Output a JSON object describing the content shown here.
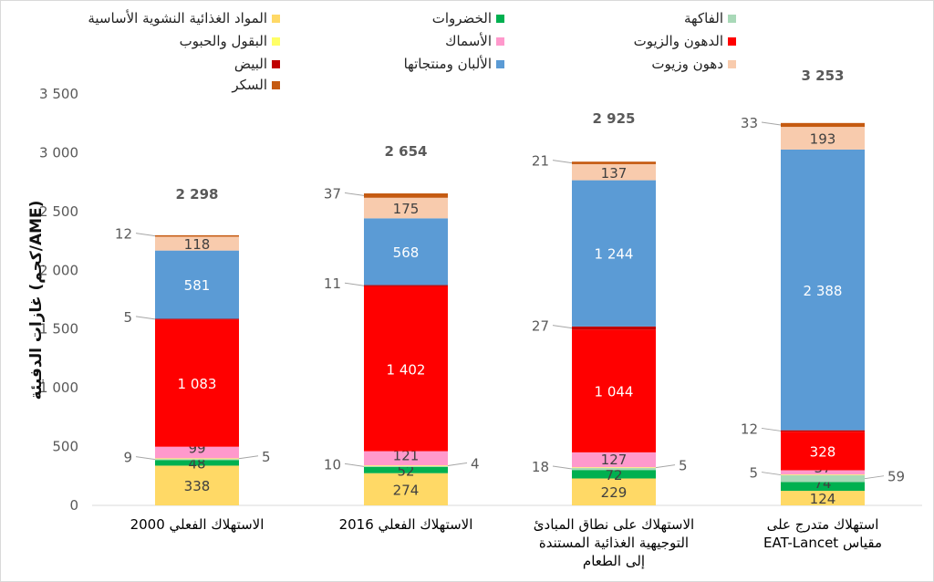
{
  "chart_data": {
    "type": "bar",
    "stacked": true,
    "ylabel": "غازات الدفيئة (كجم/AME)",
    "ylim": [
      0,
      3500
    ],
    "yticks": [
      0,
      500,
      1000,
      1500,
      2000,
      2500,
      3000,
      3500
    ],
    "ytick_labels": [
      "0",
      "500",
      "1 000",
      "1 500",
      "2 000",
      "2 500",
      "3 000",
      "3 500"
    ],
    "categories": [
      [
        "الاستهلاك الفعلي 2000"
      ],
      [
        "الاستهلاك الفعلي 2016"
      ],
      [
        "الاستهلاك على نطاق المبادئ",
        "التوجيهية الغذائية المستندة",
        "إلى الطعام"
      ],
      [
        "استهلاك متدرج على",
        "مقياس EAT-Lancet"
      ]
    ],
    "totals": [
      "2 298",
      "2 654",
      "2 925",
      "3 253"
    ],
    "series": [
      {
        "name": "المواد الغذائية النشوية الأساسية",
        "color": "#FFD966",
        "values": [
          338,
          274,
          229,
          124
        ]
      },
      {
        "name": "الخضروات",
        "color": "#00B050",
        "values": [
          48,
          52,
          72,
          74
        ]
      },
      {
        "name": "الفاكهة",
        "color": "#A9D9B8",
        "values": [
          9,
          10,
          18,
          59
        ]
      },
      {
        "name": "البقول والحبوب",
        "color": "#FFFF66",
        "values": [
          5,
          4,
          5,
          5
        ]
      },
      {
        "name": "الأسماك",
        "color": "#FF99CC",
        "values": [
          99,
          121,
          127,
          37
        ]
      },
      {
        "name": "الدهون والزيوت",
        "color": "#FF0000",
        "values": [
          1083,
          1402,
          1044,
          328
        ]
      },
      {
        "name": "البيض",
        "color": "#C00000",
        "values": [
          5,
          11,
          27,
          12
        ]
      },
      {
        "name": "الألبان ومنتجاتها",
        "color": "#5B9BD5",
        "values": [
          581,
          568,
          1244,
          2388
        ]
      },
      {
        "name": "دهون وزيوت",
        "color": "#F8CBAD",
        "values": [
          118,
          175,
          137,
          193
        ]
      },
      {
        "name": "السكر",
        "color": "#C55A11",
        "values": [
          12,
          37,
          21,
          33
        ]
      }
    ],
    "legend_placement": "top"
  }
}
